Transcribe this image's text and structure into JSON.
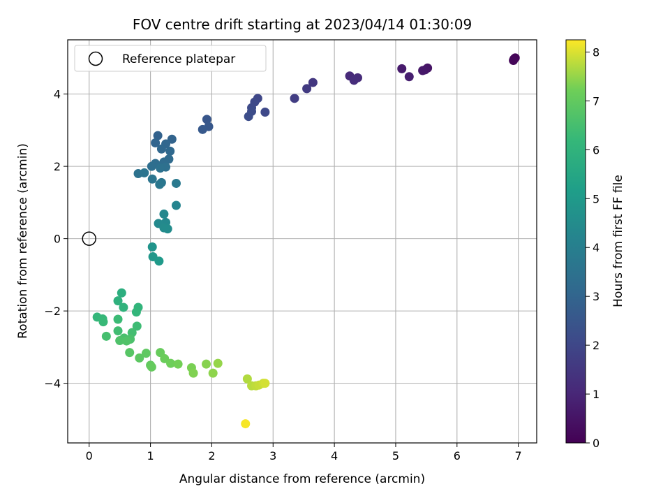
{
  "chart_data": {
    "type": "scatter",
    "title": "FOV centre drift starting at 2023/04/14 01:30:09",
    "xlabel": "Angular distance from reference (arcmin)",
    "ylabel": "Rotation from reference (arcmin)",
    "xlim": [
      -0.35,
      7.3
    ],
    "ylim": [
      -5.65,
      5.5
    ],
    "xticks": [
      0,
      1,
      2,
      3,
      4,
      5,
      6,
      7
    ],
    "yticks": [
      -4,
      -2,
      0,
      2,
      4
    ],
    "grid": true,
    "legend": {
      "placement": "upper-left",
      "entries": [
        {
          "label": "Reference platepar",
          "marker": "open-circle"
        }
      ]
    },
    "reference_point": {
      "x": 0,
      "y": 0
    },
    "colorbar": {
      "label": "Hours from first FF file",
      "colormap": "viridis",
      "range": [
        0,
        8.25
      ],
      "ticks": [
        0,
        1,
        2,
        3,
        4,
        5,
        6,
        7,
        8
      ]
    },
    "series": [
      {
        "points": [
          {
            "x": 6.95,
            "y": 5.0,
            "c": 0.05
          },
          {
            "x": 6.93,
            "y": 4.97,
            "c": 0.1
          },
          {
            "x": 6.92,
            "y": 4.93,
            "c": 0.15
          },
          {
            "x": 5.52,
            "y": 4.72,
            "c": 0.5
          },
          {
            "x": 5.48,
            "y": 4.67,
            "c": 0.55
          },
          {
            "x": 5.44,
            "y": 4.65,
            "c": 0.6
          },
          {
            "x": 5.1,
            "y": 4.7,
            "c": 0.7
          },
          {
            "x": 5.22,
            "y": 4.48,
            "c": 0.8
          },
          {
            "x": 4.25,
            "y": 4.5,
            "c": 1.1
          },
          {
            "x": 4.38,
            "y": 4.45,
            "c": 1.15
          },
          {
            "x": 4.32,
            "y": 4.38,
            "c": 1.2
          },
          {
            "x": 3.65,
            "y": 4.32,
            "c": 1.5
          },
          {
            "x": 3.55,
            "y": 4.15,
            "c": 1.6
          },
          {
            "x": 3.35,
            "y": 3.88,
            "c": 1.7
          },
          {
            "x": 2.75,
            "y": 3.88,
            "c": 2.0
          },
          {
            "x": 2.7,
            "y": 3.78,
            "c": 2.05
          },
          {
            "x": 2.65,
            "y": 3.62,
            "c": 2.1
          },
          {
            "x": 2.65,
            "y": 3.52,
            "c": 2.15
          },
          {
            "x": 2.6,
            "y": 3.38,
            "c": 2.2
          },
          {
            "x": 2.87,
            "y": 3.5,
            "c": 2.05
          },
          {
            "x": 1.92,
            "y": 3.3,
            "c": 2.5
          },
          {
            "x": 1.95,
            "y": 3.1,
            "c": 2.55
          },
          {
            "x": 1.85,
            "y": 3.02,
            "c": 2.6
          },
          {
            "x": 1.12,
            "y": 2.85,
            "c": 2.9
          },
          {
            "x": 1.35,
            "y": 2.75,
            "c": 2.95
          },
          {
            "x": 1.08,
            "y": 2.65,
            "c": 3.0
          },
          {
            "x": 1.25,
            "y": 2.62,
            "c": 3.05
          },
          {
            "x": 1.18,
            "y": 2.48,
            "c": 3.1
          },
          {
            "x": 1.32,
            "y": 2.42,
            "c": 3.15
          },
          {
            "x": 1.3,
            "y": 2.2,
            "c": 3.2
          },
          {
            "x": 1.22,
            "y": 2.12,
            "c": 3.25
          },
          {
            "x": 1.08,
            "y": 2.08,
            "c": 3.3
          },
          {
            "x": 1.02,
            "y": 2.0,
            "c": 3.35
          },
          {
            "x": 1.25,
            "y": 1.98,
            "c": 3.4
          },
          {
            "x": 1.16,
            "y": 1.95,
            "c": 3.45
          },
          {
            "x": 0.8,
            "y": 1.8,
            "c": 3.5
          },
          {
            "x": 0.9,
            "y": 1.82,
            "c": 3.55
          },
          {
            "x": 1.03,
            "y": 1.65,
            "c": 3.6
          },
          {
            "x": 1.18,
            "y": 1.55,
            "c": 3.65
          },
          {
            "x": 1.15,
            "y": 1.5,
            "c": 3.7
          },
          {
            "x": 1.42,
            "y": 1.53,
            "c": 3.75
          },
          {
            "x": 1.42,
            "y": 0.92,
            "c": 4.2
          },
          {
            "x": 1.22,
            "y": 0.68,
            "c": 4.3
          },
          {
            "x": 1.25,
            "y": 0.45,
            "c": 4.35
          },
          {
            "x": 1.13,
            "y": 0.42,
            "c": 4.4
          },
          {
            "x": 1.22,
            "y": 0.3,
            "c": 4.45
          },
          {
            "x": 1.28,
            "y": 0.27,
            "c": 4.5
          },
          {
            "x": 1.03,
            "y": -0.23,
            "c": 4.8
          },
          {
            "x": 1.04,
            "y": -0.5,
            "c": 4.9
          },
          {
            "x": 1.14,
            "y": -0.62,
            "c": 5.0
          },
          {
            "x": 0.53,
            "y": -1.5,
            "c": 5.8
          },
          {
            "x": 0.47,
            "y": -1.72,
            "c": 5.9
          },
          {
            "x": 0.56,
            "y": -1.9,
            "c": 6.0
          },
          {
            "x": 0.8,
            "y": -1.9,
            "c": 6.05
          },
          {
            "x": 0.77,
            "y": -2.03,
            "c": 6.1
          },
          {
            "x": 0.13,
            "y": -2.17,
            "c": 6.15
          },
          {
            "x": 0.22,
            "y": -2.22,
            "c": 6.2
          },
          {
            "x": 0.23,
            "y": -2.3,
            "c": 6.25
          },
          {
            "x": 0.47,
            "y": -2.23,
            "c": 6.3
          },
          {
            "x": 0.78,
            "y": -2.42,
            "c": 6.35
          },
          {
            "x": 0.47,
            "y": -2.55,
            "c": 6.4
          },
          {
            "x": 0.7,
            "y": -2.6,
            "c": 6.45
          },
          {
            "x": 0.28,
            "y": -2.7,
            "c": 6.5
          },
          {
            "x": 0.57,
            "y": -2.75,
            "c": 6.55
          },
          {
            "x": 0.67,
            "y": -2.78,
            "c": 6.6
          },
          {
            "x": 0.5,
            "y": -2.82,
            "c": 6.65
          },
          {
            "x": 0.61,
            "y": -2.83,
            "c": 6.7
          },
          {
            "x": 0.66,
            "y": -3.15,
            "c": 6.8
          },
          {
            "x": 0.82,
            "y": -3.3,
            "c": 6.9
          },
          {
            "x": 0.93,
            "y": -3.17,
            "c": 6.95
          },
          {
            "x": 1.0,
            "y": -3.5,
            "c": 7.0
          },
          {
            "x": 1.02,
            "y": -3.55,
            "c": 7.05
          },
          {
            "x": 1.16,
            "y": -3.15,
            "c": 7.1
          },
          {
            "x": 1.23,
            "y": -3.32,
            "c": 7.15
          },
          {
            "x": 1.33,
            "y": -3.45,
            "c": 7.2
          },
          {
            "x": 1.45,
            "y": -3.47,
            "c": 7.25
          },
          {
            "x": 1.67,
            "y": -3.57,
            "c": 7.3
          },
          {
            "x": 1.7,
            "y": -3.72,
            "c": 7.35
          },
          {
            "x": 1.91,
            "y": -3.47,
            "c": 7.4
          },
          {
            "x": 2.02,
            "y": -3.72,
            "c": 7.45
          },
          {
            "x": 2.1,
            "y": -3.45,
            "c": 7.5
          },
          {
            "x": 2.58,
            "y": -3.88,
            "c": 7.7
          },
          {
            "x": 2.65,
            "y": -4.07,
            "c": 7.75
          },
          {
            "x": 2.72,
            "y": -4.07,
            "c": 7.8
          },
          {
            "x": 2.77,
            "y": -4.05,
            "c": 7.85
          },
          {
            "x": 2.84,
            "y": -4.0,
            "c": 7.9
          },
          {
            "x": 2.87,
            "y": -4.0,
            "c": 7.95
          },
          {
            "x": 2.55,
            "y": -5.12,
            "c": 8.2
          }
        ]
      }
    ]
  }
}
